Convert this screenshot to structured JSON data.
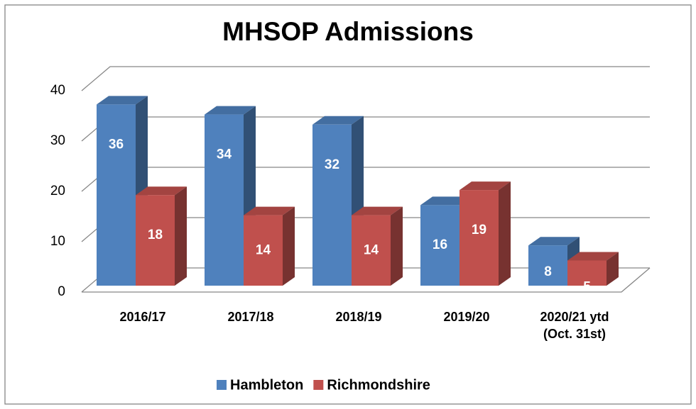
{
  "chart_data": {
    "type": "bar3d",
    "title": "MHSOP Admissions",
    "categories": [
      "2016/17",
      "2017/18",
      "2018/19",
      "2019/20",
      "2020/21 ytd\n(Oct. 31st)"
    ],
    "series": [
      {
        "name": "Hambleton",
        "color": "#4f81bd",
        "values": [
          36,
          34,
          32,
          16,
          8
        ]
      },
      {
        "name": "Richmondshire",
        "color": "#c0504d",
        "values": [
          18,
          14,
          14,
          19,
          5
        ]
      }
    ],
    "ylim": [
      0,
      40
    ],
    "yticks": [
      0,
      10,
      20,
      30,
      40
    ],
    "grid": true,
    "legend": "bottom"
  }
}
